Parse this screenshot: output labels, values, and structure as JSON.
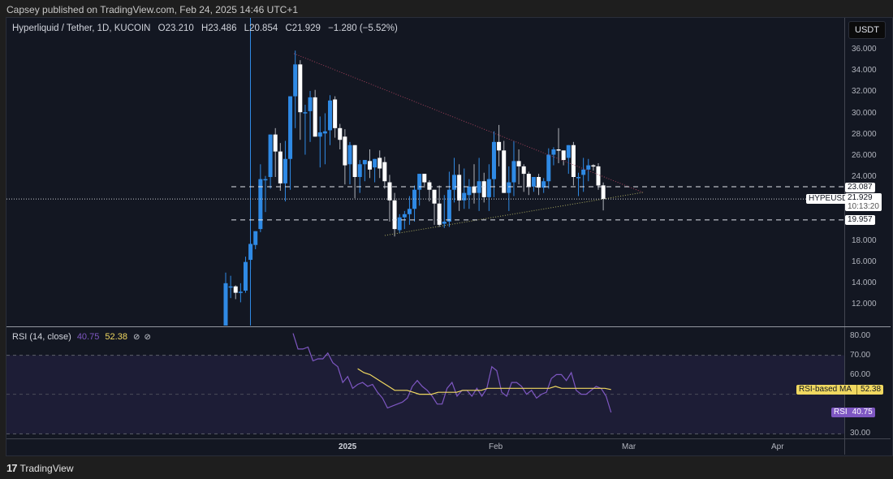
{
  "header": {
    "published_line": "Capsey published on TradingView.com, Feb 24, 2025 14:46 UTC+1"
  },
  "symbol_legend": {
    "title": "Hyperliquid / Tether, 1D, KUCOIN",
    "open": "O23.210",
    "high": "H23.486",
    "low": "L20.854",
    "close": "C21.929",
    "change": "−1.280 (−5.52%)"
  },
  "price_axis": {
    "currency_button": "USDT",
    "ticks": [
      "36.000",
      "34.000",
      "32.000",
      "30.000",
      "28.000",
      "26.000",
      "24.000",
      "18.000",
      "16.000",
      "14.000",
      "12.000"
    ],
    "tick_values": [
      36,
      34,
      32,
      30,
      28,
      26,
      24,
      18,
      16,
      14,
      12
    ],
    "level_upper": "23.087",
    "level_lower": "19.957",
    "symbol_tag": "HYPEUSDT",
    "last_price": "21.929",
    "countdown": "10:13:20"
  },
  "time_axis": {
    "labels": [
      {
        "text": "2025",
        "x": 427,
        "bold": true
      },
      {
        "text": "Feb",
        "x": 612
      },
      {
        "text": "Mar",
        "x": 776
      },
      {
        "text": "Apr",
        "x": 960
      }
    ]
  },
  "rsi_panel": {
    "title": "RSI (14, close)",
    "rsi_value": "40.75",
    "ma_value": "52.38",
    "icons": [
      "eye-off-icon",
      "eye-off-icon"
    ],
    "ticks": [
      "80.00",
      "70.00",
      "60.00",
      "30.00"
    ],
    "ma_tag_label": "RSI-based MA",
    "ma_tag_value": "52.38",
    "rsi_tag_label": "RSI",
    "rsi_tag_value": "40.75"
  },
  "colors": {
    "up": "#2f8ae5",
    "down": "#ffffff",
    "background": "#131722",
    "rsi_line": "#7e57c2",
    "rsi_ma": "#f0d860",
    "resistance_line": "#a0405a",
    "support_line": "#a8a860"
  },
  "footer": {
    "brand": "TradingView",
    "logo": "17"
  },
  "chart_data": {
    "type": "candlestick",
    "title": "Hyperliquid / Tether, 1D, KUCOIN",
    "ylabel": "USDT",
    "ylim": [
      10.5,
      37
    ],
    "x_labels": [
      "2025",
      "Feb",
      "Mar",
      "Apr"
    ],
    "candles": [
      {
        "o": 9.5,
        "h": 15.0,
        "l": 9.5,
        "c": 14.0
      },
      {
        "o": 13.7,
        "h": 14.7,
        "l": 12.6,
        "c": 13.7
      },
      {
        "o": 13.7,
        "h": 13.8,
        "l": 12.5,
        "c": 13.1
      },
      {
        "o": 13.1,
        "h": 14.0,
        "l": 12.2,
        "c": 13.2
      },
      {
        "o": 13.3,
        "h": 16.5,
        "l": 13.1,
        "c": 16.0
      },
      {
        "o": 16.2,
        "h": 17.2,
        "l": 15.3,
        "c": 17.7
      },
      {
        "o": 17.6,
        "h": 18.9,
        "l": 17.2,
        "c": 18.9
      },
      {
        "o": 19.1,
        "h": 25.2,
        "l": 18.8,
        "c": 23.8
      },
      {
        "o": 23.8,
        "h": 24.1,
        "l": 20.7,
        "c": 23.8
      },
      {
        "o": 24.0,
        "h": 26.6,
        "l": 22.9,
        "c": 28.0
      },
      {
        "o": 28.0,
        "h": 28.6,
        "l": 24.0,
        "c": 26.4
      },
      {
        "o": 26.4,
        "h": 27.2,
        "l": 22.7,
        "c": 23.4
      },
      {
        "o": 23.4,
        "h": 27.4,
        "l": 21.7,
        "c": 25.7
      },
      {
        "o": 25.7,
        "h": 30.6,
        "l": 22.8,
        "c": 31.6
      },
      {
        "o": 31.6,
        "h": 35.9,
        "l": 28.6,
        "c": 34.6
      },
      {
        "o": 34.6,
        "h": 35.0,
        "l": 27.5,
        "c": 30.1
      },
      {
        "o": 30.1,
        "h": 30.8,
        "l": 26.1,
        "c": 30.1
      },
      {
        "o": 30.2,
        "h": 32.1,
        "l": 27.3,
        "c": 31.5
      },
      {
        "o": 31.5,
        "h": 32.2,
        "l": 28.1,
        "c": 27.8
      },
      {
        "o": 27.8,
        "h": 29.7,
        "l": 24.9,
        "c": 28.2
      },
      {
        "o": 28.1,
        "h": 30.0,
        "l": 25.2,
        "c": 28.3
      },
      {
        "o": 28.4,
        "h": 31.7,
        "l": 27.0,
        "c": 31.2
      },
      {
        "o": 31.3,
        "h": 31.6,
        "l": 27.7,
        "c": 28.6
      },
      {
        "o": 28.6,
        "h": 29.0,
        "l": 26.6,
        "c": 27.5
      },
      {
        "o": 27.8,
        "h": 28.5,
        "l": 23.3,
        "c": 25.1
      },
      {
        "o": 25.2,
        "h": 27.3,
        "l": 23.3,
        "c": 27.0
      },
      {
        "o": 27.0,
        "h": 26.5,
        "l": 22.0,
        "c": 24.0
      },
      {
        "o": 24.0,
        "h": 25.6,
        "l": 22.5,
        "c": 25.2
      },
      {
        "o": 25.2,
        "h": 25.2,
        "l": 23.6,
        "c": 25.6
      },
      {
        "o": 25.5,
        "h": 26.6,
        "l": 23.9,
        "c": 24.7
      },
      {
        "o": 24.9,
        "h": 25.2,
        "l": 23.5,
        "c": 25.7
      },
      {
        "o": 25.8,
        "h": 26.5,
        "l": 23.9,
        "c": 24.8
      },
      {
        "o": 25.4,
        "h": 25.9,
        "l": 22.9,
        "c": 23.6
      },
      {
        "o": 23.5,
        "h": 24.2,
        "l": 19.8,
        "c": 21.8
      },
      {
        "o": 21.8,
        "h": 22.5,
        "l": 18.4,
        "c": 19.1
      },
      {
        "o": 19.0,
        "h": 20.5,
        "l": 18.7,
        "c": 20.2
      },
      {
        "o": 20.2,
        "h": 20.8,
        "l": 19.1,
        "c": 20.5
      },
      {
        "o": 20.5,
        "h": 22.2,
        "l": 19.5,
        "c": 21.0
      },
      {
        "o": 21.0,
        "h": 23.2,
        "l": 19.8,
        "c": 22.8
      },
      {
        "o": 22.8,
        "h": 24.2,
        "l": 21.3,
        "c": 24.3
      },
      {
        "o": 24.3,
        "h": 24.3,
        "l": 23.0,
        "c": 23.5
      },
      {
        "o": 23.5,
        "h": 23.7,
        "l": 21.7,
        "c": 22.8
      },
      {
        "o": 22.8,
        "h": 22.8,
        "l": 19.5,
        "c": 21.5
      },
      {
        "o": 21.5,
        "h": 23.2,
        "l": 19.3,
        "c": 19.5
      },
      {
        "o": 19.6,
        "h": 22.3,
        "l": 19.2,
        "c": 19.8
      },
      {
        "o": 19.8,
        "h": 24.5,
        "l": 19.3,
        "c": 22.8
      },
      {
        "o": 22.8,
        "h": 25.8,
        "l": 21.6,
        "c": 24.2
      },
      {
        "o": 24.2,
        "h": 25.2,
        "l": 20.8,
        "c": 21.8
      },
      {
        "o": 21.8,
        "h": 24.8,
        "l": 21.0,
        "c": 22.5
      },
      {
        "o": 22.3,
        "h": 23.8,
        "l": 21.0,
        "c": 23.1
      },
      {
        "o": 23.1,
        "h": 25.2,
        "l": 21.5,
        "c": 22.5
      },
      {
        "o": 22.5,
        "h": 25.8,
        "l": 20.8,
        "c": 23.6
      },
      {
        "o": 23.6,
        "h": 24.4,
        "l": 21.6,
        "c": 22.1
      },
      {
        "o": 22.1,
        "h": 25.2,
        "l": 20.8,
        "c": 23.8
      },
      {
        "o": 23.8,
        "h": 28.3,
        "l": 22.1,
        "c": 27.3
      },
      {
        "o": 27.3,
        "h": 28.9,
        "l": 25.0,
        "c": 26.5
      },
      {
        "o": 26.5,
        "h": 27.4,
        "l": 22.7,
        "c": 22.5
      },
      {
        "o": 22.5,
        "h": 25.0,
        "l": 20.8,
        "c": 23.5
      },
      {
        "o": 23.5,
        "h": 27.4,
        "l": 22.2,
        "c": 25.5
      },
      {
        "o": 25.5,
        "h": 26.6,
        "l": 23.3,
        "c": 25.0
      },
      {
        "o": 25.0,
        "h": 25.2,
        "l": 22.6,
        "c": 24.3
      },
      {
        "o": 24.3,
        "h": 24.5,
        "l": 22.3,
        "c": 23.1
      },
      {
        "o": 23.1,
        "h": 23.9,
        "l": 22.6,
        "c": 24.0
      },
      {
        "o": 24.0,
        "h": 24.3,
        "l": 22.3,
        "c": 23.0
      },
      {
        "o": 23.0,
        "h": 23.9,
        "l": 22.5,
        "c": 23.6
      },
      {
        "o": 23.6,
        "h": 26.7,
        "l": 22.9,
        "c": 26.1
      },
      {
        "o": 26.1,
        "h": 26.8,
        "l": 25.1,
        "c": 26.6
      },
      {
        "o": 26.6,
        "h": 28.6,
        "l": 25.3,
        "c": 26.5
      },
      {
        "o": 26.5,
        "h": 26.5,
        "l": 25.1,
        "c": 25.6
      },
      {
        "o": 25.8,
        "h": 26.8,
        "l": 24.3,
        "c": 27.0
      },
      {
        "o": 27.0,
        "h": 27.3,
        "l": 23.2,
        "c": 24.0
      },
      {
        "o": 24.0,
        "h": 24.4,
        "l": 22.2,
        "c": 24.0
      },
      {
        "o": 24.2,
        "h": 25.8,
        "l": 22.6,
        "c": 24.7
      },
      {
        "o": 24.7,
        "h": 25.7,
        "l": 23.6,
        "c": 25.1
      },
      {
        "o": 25.1,
        "h": 25.2,
        "l": 24.6,
        "c": 25.0
      },
      {
        "o": 25.0,
        "h": 25.3,
        "l": 22.8,
        "c": 23.2
      },
      {
        "o": 23.21,
        "h": 23.486,
        "l": 20.854,
        "c": 21.929
      }
    ],
    "horizontal_levels": [
      23.087,
      19.957
    ],
    "last_price": 21.929,
    "rsi": {
      "period": 14,
      "source": "close",
      "ylim": [
        28,
        83
      ],
      "ticks": [
        80,
        70,
        60,
        50,
        30
      ],
      "band": [
        30,
        70
      ],
      "last_rsi": 40.75,
      "last_ma": 52.38,
      "rsi_values": [
        81,
        73,
        73,
        74,
        67,
        68,
        68,
        71,
        66,
        64,
        56,
        59,
        53,
        55,
        56,
        54,
        55,
        51,
        48,
        43,
        44,
        45,
        46,
        48,
        54,
        57,
        54,
        52,
        49,
        45,
        45,
        53,
        56,
        49,
        52,
        52,
        49,
        53,
        49,
        53,
        64,
        62,
        51,
        49,
        56,
        56,
        54,
        50,
        52,
        48,
        50,
        51,
        58,
        60,
        60,
        57,
        61,
        52,
        50,
        50,
        52,
        54,
        53,
        49,
        40.75
      ],
      "ma_start_index": 13,
      "ma_values": [
        63,
        61,
        60,
        58,
        56,
        54,
        52,
        52,
        52,
        51,
        50,
        50,
        50,
        51,
        51,
        51,
        51,
        52,
        52,
        52,
        52,
        53,
        53,
        53,
        53,
        53,
        53,
        53,
        53,
        53,
        53,
        53,
        54,
        53,
        53,
        53,
        53,
        53,
        53,
        53,
        53,
        52.38
      ]
    }
  }
}
